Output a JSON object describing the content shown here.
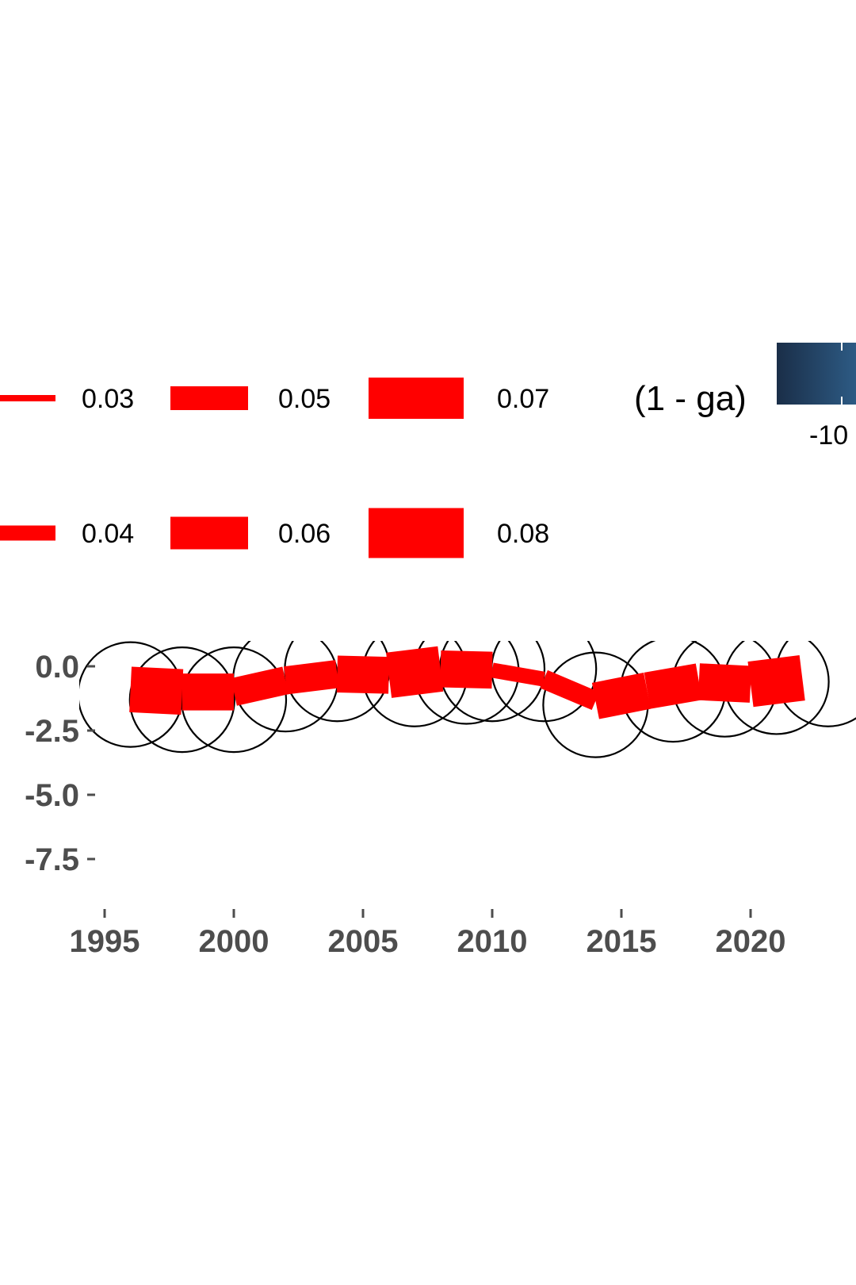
{
  "chart_data": {
    "type": "line",
    "title": "",
    "xlabel": "",
    "ylabel": "",
    "x_ticks": [
      "1995",
      "2000",
      "2005",
      "2010",
      "2015",
      "2020"
    ],
    "y_ticks": [
      "0.0",
      "-2.5",
      "-5.0",
      "-7.5"
    ],
    "xlim": [
      1994.5,
      2023.5
    ],
    "ylim": [
      -8.8,
      0.5
    ],
    "line_color": "#ff0000",
    "circle_color": "#000000",
    "series": [
      {
        "x": [
          1996,
          1998,
          2000,
          2002,
          2004,
          2006,
          2008,
          2010,
          2012,
          2014,
          2016,
          2018,
          2020,
          2022
        ],
        "y": [
          -0.9,
          -1.0,
          -1.0,
          -0.55,
          -0.3,
          -0.35,
          -0.1,
          -0.15,
          -0.5,
          -1.35,
          -0.95,
          -0.6,
          -0.7,
          -0.45
        ],
        "size": [
          0.08,
          0.07,
          0.06,
          0.05,
          0.06,
          0.07,
          0.08,
          0.05,
          0.03,
          0.06,
          0.07,
          0.06,
          0.07,
          0.08
        ]
      }
    ],
    "circles": [
      {
        "x": 1996,
        "y": -1.1
      },
      {
        "x": 1998,
        "y": -1.3
      },
      {
        "x": 2000,
        "y": -1.3
      },
      {
        "x": 2002,
        "y": -0.5
      },
      {
        "x": 2004,
        "y": -0.1
      },
      {
        "x": 2007,
        "y": -0.3
      },
      {
        "x": 2009,
        "y": -0.2
      },
      {
        "x": 2010,
        "y": -0.1
      },
      {
        "x": 2012,
        "y": -0.1
      },
      {
        "x": 2014,
        "y": -1.5
      },
      {
        "x": 2017,
        "y": -0.9
      },
      {
        "x": 2019,
        "y": -0.7
      },
      {
        "x": 2021,
        "y": -0.6
      },
      {
        "x": 2023,
        "y": -0.3
      }
    ],
    "size_legend": {
      "entries": [
        {
          "label": "0.03",
          "value": 0.03
        },
        {
          "label": "0.04",
          "value": 0.04
        },
        {
          "label": "0.05",
          "value": 0.05
        },
        {
          "label": "0.06",
          "value": 0.06
        },
        {
          "label": "0.07",
          "value": 0.07
        },
        {
          "label": "0.08",
          "value": 0.08
        }
      ]
    },
    "color_legend": {
      "title": "(1 - ga)",
      "labels": [
        "-10"
      ],
      "gradient_colors": [
        "#1a2e48",
        "#2f5f8a"
      ]
    },
    "legend_position": "top",
    "grid": false
  }
}
